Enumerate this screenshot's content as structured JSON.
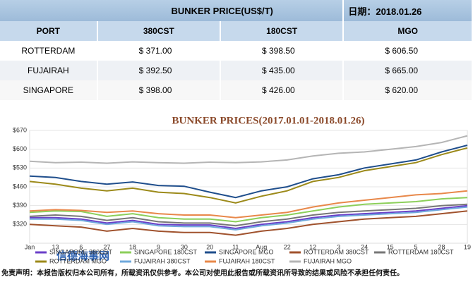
{
  "table": {
    "title": "BUNKER  PRICE(US$/T)",
    "date": "日期：2018.01.26",
    "headers": [
      "PORT",
      "380CST",
      "180CST",
      "MGO"
    ],
    "rows": [
      [
        "ROTTERDAM",
        "$ 371.00",
        "$ 398.50",
        "$ 606.50"
      ],
      [
        "FUJAIRAH",
        "$ 392.50",
        "$ 435.00",
        "$ 665.00"
      ],
      [
        "SINGAPORE",
        "$ 398.00",
        "$ 426.00",
        "$ 620.00"
      ]
    ]
  },
  "watermark": "信德海事网",
  "disclaimer": "免责声明：本报告版权归本公司所有，所载资讯仅供参考。本公司对使用此报告或所载资讯所导致的结果或风险不承担任何责任。",
  "chart_data": {
    "type": "line",
    "title": "BUNKER PRICES(2017.01.01-2018.01.26)",
    "categories": [
      "Jan",
      "13",
      "6",
      "27",
      "18",
      "9",
      "30",
      "20",
      "11",
      "Aug",
      "22",
      "12",
      "3",
      "24",
      "15",
      "5",
      "28",
      "19"
    ],
    "ylim": [
      250,
      670
    ],
    "yticks": [
      {
        "value": 320,
        "label": "$320"
      },
      {
        "value": 390,
        "label": "$390"
      },
      {
        "value": 460,
        "label": "$460"
      },
      {
        "value": 530,
        "label": "$530"
      },
      {
        "value": 600,
        "label": "$600"
      },
      {
        "value": 670,
        "label": "$670"
      }
    ],
    "grid": true,
    "series": [
      {
        "name": "SINGAPORE 380CST",
        "color": "#6a3fc8",
        "values": [
          345,
          345,
          340,
          325,
          335,
          320,
          318,
          318,
          305,
          320,
          330,
          345,
          355,
          360,
          365,
          370,
          380,
          390
        ]
      },
      {
        "name": "SINGAPORE 180CST",
        "color": "#8ccf5a",
        "values": [
          365,
          370,
          368,
          350,
          360,
          345,
          340,
          340,
          330,
          345,
          355,
          370,
          385,
          395,
          400,
          405,
          415,
          420
        ]
      },
      {
        "name": "SINGAPORE MGO",
        "color": "#1f4e8c",
        "values": [
          500,
          495,
          480,
          470,
          478,
          465,
          462,
          440,
          420,
          445,
          460,
          490,
          505,
          530,
          545,
          560,
          590,
          615
        ]
      },
      {
        "name": "ROTTERDAM 380CST",
        "color": "#a0522d",
        "values": [
          320,
          315,
          310,
          295,
          305,
          295,
          290,
          290,
          280,
          295,
          305,
          320,
          330,
          340,
          345,
          350,
          360,
          370
        ]
      },
      {
        "name": "ROTTERDAM 180CST",
        "color": "#777777",
        "values": [
          350,
          355,
          350,
          335,
          345,
          330,
          325,
          325,
          315,
          330,
          340,
          355,
          365,
          370,
          375,
          380,
          390,
          395
        ]
      },
      {
        "name": "ROTTERDAM MGO",
        "color": "#9c8a1a",
        "values": [
          480,
          470,
          455,
          445,
          455,
          440,
          435,
          420,
          400,
          425,
          445,
          480,
          495,
          520,
          535,
          550,
          580,
          605
        ]
      },
      {
        "name": "FUJAIRAH 380CST",
        "color": "#6fa8dc",
        "values": [
          340,
          340,
          335,
          320,
          330,
          315,
          312,
          312,
          300,
          315,
          325,
          340,
          350,
          355,
          360,
          365,
          375,
          385
        ]
      },
      {
        "name": "FUJAIRAH 180CST",
        "color": "#e8884a",
        "values": [
          370,
          375,
          372,
          365,
          370,
          360,
          355,
          355,
          345,
          355,
          365,
          385,
          400,
          410,
          420,
          430,
          435,
          445
        ]
      },
      {
        "name": "FUJAIRAH MGO",
        "color": "#b5b5b5",
        "values": [
          555,
          550,
          552,
          548,
          553,
          550,
          548,
          552,
          550,
          553,
          560,
          575,
          585,
          590,
          600,
          610,
          625,
          650
        ]
      }
    ]
  }
}
